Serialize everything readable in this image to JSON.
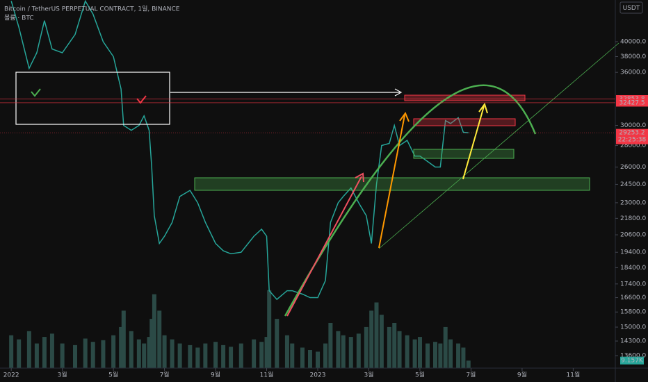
{
  "chart_data": {
    "type": "line",
    "title": "Bitcoin / TetherUS PERPETUAL CONTRACT, 1일, BINANCE",
    "subtitle": "볼륨 · BTC",
    "currency": "USDT",
    "log_scale": true,
    "grid": false,
    "color": "#26a69a",
    "volume_color": "#2b4a46",
    "x": [
      0.0,
      0.3,
      0.7,
      1.0,
      1.3,
      1.6,
      2.0,
      2.5,
      2.9,
      3.2,
      3.6,
      4.0,
      4.3,
      4.4,
      4.7,
      5.0,
      5.2,
      5.4,
      5.5,
      5.6,
      5.8,
      6.0,
      6.3,
      6.6,
      7.0,
      7.3,
      7.6,
      8.0,
      8.3,
      8.6,
      9.0,
      9.5,
      9.8,
      10.0,
      10.1,
      10.4,
      10.8,
      11.0,
      11.4,
      11.7,
      12.0,
      12.3,
      12.5,
      12.8,
      13.0,
      13.3,
      13.6,
      13.9,
      14.1,
      14.3,
      14.5,
      14.8,
      15.0,
      15.2,
      15.5,
      15.8,
      16.0,
      16.3,
      16.6,
      16.8,
      17.0,
      17.2,
      17.5,
      17.7,
      17.9
    ],
    "values": [
      46000,
      42000,
      36500,
      38500,
      43000,
      39000,
      38500,
      41000,
      46000,
      44000,
      40000,
      38000,
      34000,
      30000,
      29500,
      30000,
      31000,
      29500,
      26000,
      22000,
      20000,
      20500,
      21500,
      23500,
      24000,
      23000,
      21500,
      20000,
      19500,
      19300,
      19400,
      20500,
      21000,
      20500,
      17000,
      16500,
      17000,
      17000,
      16800,
      16600,
      16600,
      17600,
      21500,
      23000,
      23500,
      24200,
      23000,
      22000,
      20000,
      24500,
      28000,
      28200,
      30000,
      28000,
      28500,
      27000,
      27000,
      26500,
      26000,
      26000,
      30500,
      30200,
      30800,
      29300,
      29253.2
    ],
    "volume": [
      40,
      35,
      45,
      30,
      38,
      42,
      30,
      28,
      36,
      32,
      34,
      40,
      50,
      70,
      45,
      35,
      30,
      38,
      60,
      90,
      70,
      40,
      35,
      30,
      28,
      25,
      30,
      32,
      28,
      26,
      30,
      35,
      32,
      38,
      95,
      60,
      40,
      30,
      25,
      22,
      20,
      30,
      55,
      45,
      40,
      38,
      42,
      50,
      70,
      80,
      65,
      50,
      55,
      45,
      40,
      35,
      38,
      30,
      32,
      30,
      50,
      35,
      30,
      25,
      9.157
    ],
    "volume_label": "9.157K",
    "volume_lim": [
      0,
      110
    ],
    "xlim": [
      -0.44,
      23.65
    ],
    "xticks": [
      {
        "value": 0,
        "label": "2022"
      },
      {
        "value": 2,
        "label": "3월"
      },
      {
        "value": 4,
        "label": "5월"
      },
      {
        "value": 6,
        "label": "7월"
      },
      {
        "value": 8,
        "label": "9월"
      },
      {
        "value": 10,
        "label": "11월"
      },
      {
        "value": 12,
        "label": "2023"
      },
      {
        "value": 14,
        "label": "3월"
      },
      {
        "value": 16,
        "label": "5월"
      },
      {
        "value": 18,
        "label": "7월"
      },
      {
        "value": 20,
        "label": "9월"
      },
      {
        "value": 22,
        "label": "11월"
      }
    ],
    "ylim": [
      13030,
      46160
    ],
    "yticks": [
      {
        "value": 40000,
        "label": "40000.0"
      },
      {
        "value": 38000,
        "label": "38000.0"
      },
      {
        "value": 36000,
        "label": "36000.0"
      },
      {
        "value": 30000,
        "label": "30000.0"
      },
      {
        "value": 28000,
        "label": "28000.0"
      },
      {
        "value": 26000,
        "label": "26000.0"
      },
      {
        "value": 24500,
        "label": "24500.0"
      },
      {
        "value": 23000,
        "label": "23000.0"
      },
      {
        "value": 21800,
        "label": "21800.0"
      },
      {
        "value": 20600,
        "label": "20600.0"
      },
      {
        "value": 19400,
        "label": "19400.0"
      },
      {
        "value": 18400,
        "label": "18400.0"
      },
      {
        "value": 17400,
        "label": "17400.0"
      },
      {
        "value": 16600,
        "label": "16600.0"
      },
      {
        "value": 15800,
        "label": "15800.0"
      },
      {
        "value": 15000,
        "label": "15000.0"
      },
      {
        "value": 14300,
        "label": "14300.0"
      },
      {
        "value": 13600,
        "label": "13600.0"
      }
    ],
    "price_labels": [
      {
        "value": 32853.8,
        "label": "32853.8",
        "color": "#f23645"
      },
      {
        "value": 32427.5,
        "label": "32427.5",
        "color": "#f23645"
      },
      {
        "value": 29253.2,
        "label": "29253.2",
        "color": "#f23645",
        "countdown": "22:25:38"
      }
    ]
  }
}
